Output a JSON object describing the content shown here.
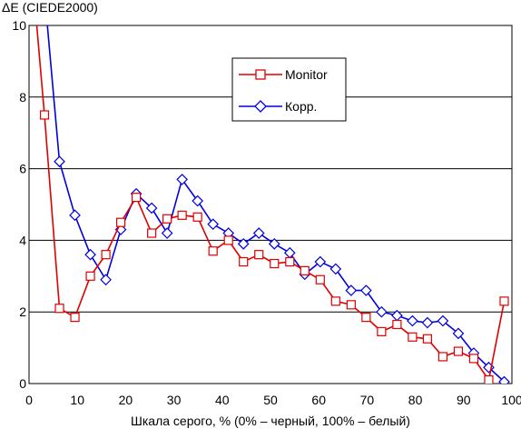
{
  "chart_data": {
    "type": "line",
    "title": "",
    "ylabel": "ΔE (CIEDE2000)",
    "xlabel": "Шкала серого, % (0% – черный, 100% – белый)",
    "xlim": [
      0,
      100
    ],
    "ylim": [
      0,
      10
    ],
    "xticks": [
      "0",
      "10",
      "20",
      "30",
      "40",
      "50",
      "60",
      "70",
      "80",
      "90",
      "100"
    ],
    "yticks": [
      "0",
      "2",
      "4",
      "6",
      "8",
      "10"
    ],
    "grid": "horizontal",
    "legend_position": "top-right",
    "series": [
      {
        "name": "Monitor",
        "color": "#e00000",
        "marker": "square",
        "points": [
          [
            1.6,
            10.0
          ],
          [
            3.2,
            7.5
          ],
          [
            6.3,
            2.1
          ],
          [
            9.5,
            1.85
          ],
          [
            12.7,
            3.0
          ],
          [
            15.9,
            3.6
          ],
          [
            19.0,
            4.5
          ],
          [
            22.2,
            5.2
          ],
          [
            25.4,
            4.2
          ],
          [
            28.6,
            4.6
          ],
          [
            31.7,
            4.7
          ],
          [
            34.9,
            4.65
          ],
          [
            38.1,
            3.7
          ],
          [
            41.3,
            4.0
          ],
          [
            44.4,
            3.4
          ],
          [
            47.6,
            3.6
          ],
          [
            50.8,
            3.35
          ],
          [
            54.0,
            3.4
          ],
          [
            57.1,
            3.15
          ],
          [
            60.3,
            2.9
          ],
          [
            63.5,
            2.3
          ],
          [
            66.7,
            2.2
          ],
          [
            69.8,
            1.85
          ],
          [
            73.0,
            1.45
          ],
          [
            76.2,
            1.65
          ],
          [
            79.4,
            1.3
          ],
          [
            82.5,
            1.25
          ],
          [
            85.7,
            0.75
          ],
          [
            88.9,
            0.9
          ],
          [
            92.1,
            0.7
          ],
          [
            95.2,
            0.1
          ],
          [
            98.4,
            2.3
          ]
        ]
      },
      {
        "name": "Корр.",
        "color": "#0000e0",
        "marker": "diamond",
        "points": [
          [
            3.8,
            10.0
          ],
          [
            6.3,
            6.2
          ],
          [
            9.5,
            4.7
          ],
          [
            12.7,
            3.6
          ],
          [
            15.9,
            2.9
          ],
          [
            19.0,
            4.3
          ],
          [
            22.2,
            5.3
          ],
          [
            25.4,
            4.9
          ],
          [
            28.6,
            4.2
          ],
          [
            31.7,
            5.7
          ],
          [
            34.9,
            5.1
          ],
          [
            38.1,
            4.45
          ],
          [
            41.3,
            4.2
          ],
          [
            44.4,
            3.9
          ],
          [
            47.6,
            4.2
          ],
          [
            50.8,
            3.9
          ],
          [
            54.0,
            3.65
          ],
          [
            57.1,
            3.05
          ],
          [
            60.3,
            3.4
          ],
          [
            63.5,
            3.2
          ],
          [
            66.7,
            2.6
          ],
          [
            69.8,
            2.6
          ],
          [
            73.0,
            2.0
          ],
          [
            76.2,
            1.9
          ],
          [
            79.4,
            1.75
          ],
          [
            82.5,
            1.7
          ],
          [
            85.7,
            1.75
          ],
          [
            88.9,
            1.4
          ],
          [
            92.1,
            0.85
          ],
          [
            95.2,
            0.45
          ],
          [
            98.4,
            0.05
          ]
        ]
      }
    ]
  }
}
